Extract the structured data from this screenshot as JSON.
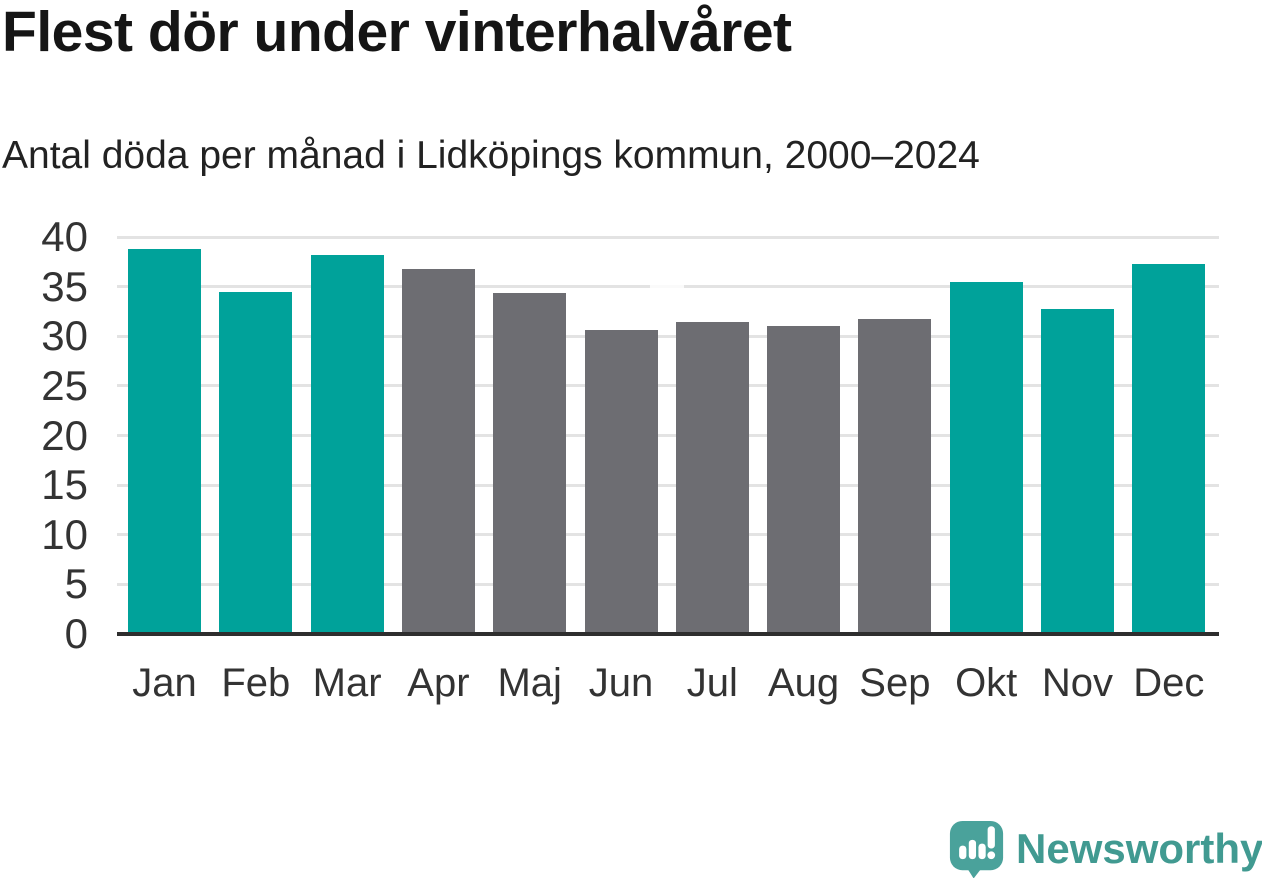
{
  "header": {
    "title": "Flest dör under vinterhalvåret",
    "subtitle": "Antal döda per månad i Lidköpings kommun, 2000–2024"
  },
  "chart_data": {
    "type": "bar",
    "title": "Flest dör under vinterhalvåret",
    "subtitle": "Antal döda per månad i Lidköpings kommun, 2000–2024",
    "categories": [
      "Jan",
      "Feb",
      "Mar",
      "Apr",
      "Maj",
      "Jun",
      "Jul",
      "Aug",
      "Sep",
      "Okt",
      "Nov",
      "Dec"
    ],
    "values": [
      38.8,
      34.5,
      38.2,
      36.8,
      34.4,
      30.6,
      31.4,
      31.0,
      31.7,
      35.5,
      32.7,
      37.3
    ],
    "bar_colors": [
      "#00A29A",
      "#00A29A",
      "#00A29A",
      "#6D6D72",
      "#6D6D72",
      "#6D6D72",
      "#6D6D72",
      "#6D6D72",
      "#6D6D72",
      "#00A29A",
      "#00A29A",
      "#00A29A"
    ],
    "highlighted_categories": [
      "Jan",
      "Feb",
      "Mar",
      "Okt",
      "Nov",
      "Dec"
    ],
    "xlabel": "",
    "ylabel": "",
    "ylim": [
      0,
      40
    ],
    "yticks": [
      0,
      5,
      10,
      15,
      20,
      25,
      30,
      35,
      40
    ],
    "grid": true,
    "legend": "none"
  },
  "branding": {
    "logo_text": "Newsworthy",
    "logo_icon": "newsworthy-logo-icon"
  },
  "colors": {
    "highlight_teal": "#00A29A",
    "muted_gray": "#6D6D72",
    "gridline": "#E3E3E3",
    "axis_line": "#2E2E2E",
    "tick_label": "#333333",
    "title_text": "#151515",
    "subtitle_text": "#222222",
    "logo_teal": "#419A91",
    "logo_bubble": "#4AA29B"
  }
}
